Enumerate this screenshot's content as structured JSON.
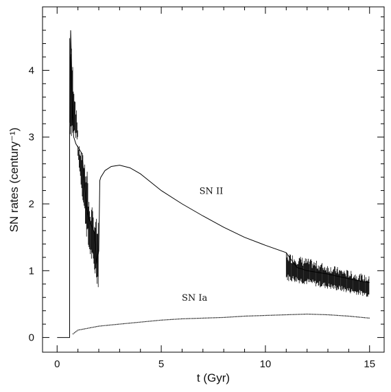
{
  "chart_data": {
    "type": "line",
    "xlabel": "t (Gyr)",
    "ylabel": "SN rates (century⁻¹)",
    "xlim": [
      -0.7,
      15.7
    ],
    "ylim": [
      -0.22,
      4.95
    ],
    "x_major_ticks": [
      0,
      5,
      10,
      15
    ],
    "x_tick_labels": [
      "0",
      "5",
      "10",
      "15"
    ],
    "y_major_ticks": [
      0,
      1,
      2,
      3,
      4
    ],
    "y_tick_labels": [
      "0",
      "1",
      "2",
      "3",
      "4"
    ],
    "x_minor_step": 1,
    "y_minor_step": 0.2,
    "grid": false,
    "legend": "none",
    "series": [
      {
        "name": "SN II",
        "x": [
          0,
          0.6,
          0.6,
          0.65,
          0.7,
          0.75,
          0.8,
          0.85,
          0.9,
          1.0,
          1.2,
          1.4,
          1.5,
          1.6,
          1.7,
          1.8,
          1.9,
          2.0,
          2.05,
          2.1,
          2.3,
          2.6,
          3.0,
          3.5,
          4.0,
          5.0,
          6.0,
          7.0,
          8.0,
          9.0,
          10.0,
          11.0,
          11.5,
          12.0,
          13.0,
          14.0,
          15.0
        ],
        "y": [
          0,
          0,
          3.0,
          4.6,
          4.0,
          3.3,
          3.0,
          2.95,
          2.9,
          2.85,
          2.75,
          2.0,
          1.8,
          1.7,
          1.65,
          1.55,
          1.1,
          1.3,
          2.35,
          2.4,
          2.5,
          2.56,
          2.58,
          2.54,
          2.45,
          2.2,
          2.0,
          1.82,
          1.65,
          1.5,
          1.38,
          1.27,
          1.05,
          1.0,
          0.95,
          0.88,
          0.82
        ]
      },
      {
        "name": "SN Ia",
        "x": [
          0.75,
          1.0,
          1.5,
          2.0,
          3.0,
          4.0,
          5.0,
          6.0,
          7.0,
          8.0,
          9.0,
          10.0,
          11.0,
          12.0,
          13.0,
          14.0,
          15.0
        ],
        "y": [
          0.05,
          0.11,
          0.14,
          0.17,
          0.2,
          0.23,
          0.26,
          0.28,
          0.29,
          0.3,
          0.32,
          0.33,
          0.34,
          0.35,
          0.34,
          0.32,
          0.29
        ]
      }
    ],
    "noisy_regions": [
      {
        "series": "SN II",
        "x_range": [
          0.6,
          1.0
        ],
        "y_low": [
          3.0,
          2.95
        ],
        "y_high": [
          4.75,
          3.1
        ]
      },
      {
        "series": "SN II",
        "x_range": [
          1.0,
          1.5
        ],
        "y_low": [
          2.7,
          1.25
        ],
        "y_high": [
          2.9,
          2.6
        ]
      },
      {
        "series": "SN II",
        "x_range": [
          1.5,
          2.0
        ],
        "y_low": [
          1.3,
          0.7
        ],
        "y_high": [
          2.1,
          1.7
        ]
      },
      {
        "series": "SN II",
        "x_range": [
          11.0,
          15.0
        ],
        "y_low": [
          0.85,
          0.6
        ],
        "y_high": [
          1.28,
          0.92
        ]
      }
    ],
    "annotations": [
      {
        "text": "SN II",
        "x": 7.4,
        "y": 2.15
      },
      {
        "text": "SN Ia",
        "x": 6.6,
        "y": 0.55
      }
    ]
  }
}
